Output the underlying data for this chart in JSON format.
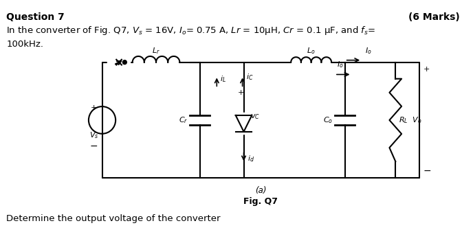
{
  "title_left": "Question 7",
  "title_right": "(6 Marks)",
  "problem_text_line1": "In the converter of Fig. Q7, $V_s$ = 16V, $I_o$= 0.75 A, $Lr$ = 10μH, $Cr$ = 0.1 μF, and $f_s$=",
  "problem_text_line2": "100kHz.",
  "fig_label_a": "(a)",
  "fig_label": "Fig. Q7",
  "bottom_text": "Determine the output voltage of the converter",
  "bg_color": "#ffffff"
}
